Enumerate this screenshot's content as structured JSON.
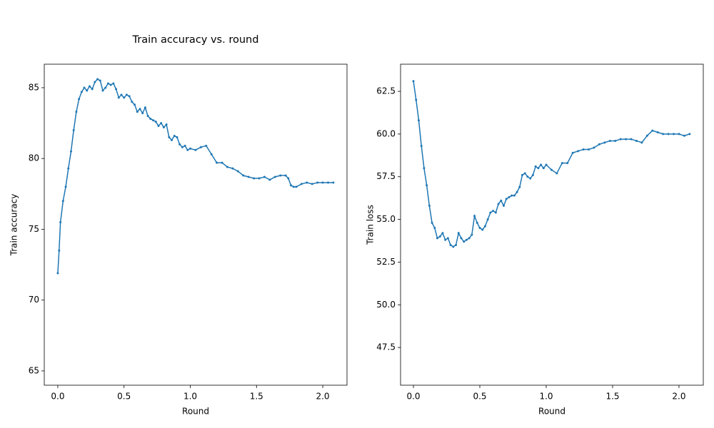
{
  "chart_data": [
    {
      "type": "line",
      "title": "Train accuracy vs. round",
      "x_label": "Round",
      "y_label": "Train accuracy",
      "x": [
        0,
        0.01,
        0.02,
        0.04,
        0.06,
        0.08,
        0.1,
        0.12,
        0.14,
        0.16,
        0.18,
        0.2,
        0.22,
        0.24,
        0.26,
        0.28,
        0.3,
        0.32,
        0.34,
        0.36,
        0.38,
        0.4,
        0.42,
        0.44,
        0.46,
        0.48,
        0.5,
        0.52,
        0.54,
        0.56,
        0.58,
        0.6,
        0.62,
        0.64,
        0.66,
        0.68,
        0.7,
        0.72,
        0.74,
        0.76,
        0.78,
        0.8,
        0.82,
        0.84,
        0.86,
        0.88,
        0.9,
        0.92,
        0.94,
        0.96,
        0.98,
        1.0,
        1.04,
        1.08,
        1.12,
        1.16,
        1.2,
        1.24,
        1.28,
        1.32,
        1.36,
        1.4,
        1.44,
        1.48,
        1.52,
        1.56,
        1.6,
        1.64,
        1.68,
        1.72,
        1.74,
        1.76,
        1.78,
        1.8,
        1.84,
        1.88,
        1.92,
        1.96,
        2.0,
        2.04,
        2.08
      ],
      "series": [
        {
          "color": "#1f77b4",
          "values": [
            71.9,
            73.5,
            75.5,
            77,
            78,
            79.3,
            80.5,
            82,
            83.3,
            84.2,
            84.7,
            85,
            84.8,
            85.1,
            84.9,
            85.4,
            85.6,
            85.5,
            84.8,
            85,
            85.3,
            85.2,
            85.3,
            84.9,
            84.3,
            84.5,
            84.3,
            84.5,
            84.4,
            84.0,
            83.8,
            83.3,
            83.5,
            83.2,
            83.6,
            83.0,
            82.8,
            82.7,
            82.6,
            82.3,
            82.5,
            82.2,
            82.4,
            81.5,
            81.3,
            81.6,
            81.5,
            81.0,
            80.8,
            80.9,
            80.6,
            80.7,
            80.6,
            80.8,
            80.9,
            80.3,
            79.7,
            79.7,
            79.4,
            79.3,
            79.1,
            78.8,
            78.7,
            78.6,
            78.6,
            78.7,
            78.5,
            78.7,
            78.8,
            78.8,
            78.6,
            78.1,
            78.0,
            78.0,
            78.2,
            78.3,
            78.2,
            78.3,
            78.3,
            78.3,
            78.3
          ]
        }
      ],
      "xlim": [
        -0.102,
        2.183
      ],
      "ylim": [
        63.99,
        86.66
      ],
      "xticks": [
        {
          "value": 0,
          "label": "0.0"
        },
        0.5,
        {
          "value": 1,
          "label": "1.0"
        },
        1.5,
        {
          "value": 2,
          "label": "2.0"
        }
      ],
      "yticks": [
        65,
        70,
        75,
        80,
        85
      ]
    },
    {
      "type": "line",
      "x_label": "Round",
      "y_label": "Train loss",
      "x": [
        0,
        0.02,
        0.04,
        0.06,
        0.08,
        0.1,
        0.12,
        0.14,
        0.16,
        0.18,
        0.2,
        0.22,
        0.24,
        0.26,
        0.28,
        0.3,
        0.32,
        0.34,
        0.36,
        0.38,
        0.4,
        0.42,
        0.44,
        0.46,
        0.48,
        0.5,
        0.52,
        0.54,
        0.56,
        0.58,
        0.6,
        0.62,
        0.64,
        0.66,
        0.68,
        0.7,
        0.72,
        0.74,
        0.76,
        0.78,
        0.8,
        0.82,
        0.84,
        0.86,
        0.88,
        0.9,
        0.92,
        0.94,
        0.96,
        0.98,
        1.0,
        1.04,
        1.08,
        1.12,
        1.16,
        1.2,
        1.24,
        1.28,
        1.32,
        1.36,
        1.4,
        1.44,
        1.48,
        1.52,
        1.56,
        1.6,
        1.64,
        1.68,
        1.72,
        1.76,
        1.8,
        1.84,
        1.88,
        1.92,
        1.96,
        2.0,
        2.04,
        2.08
      ],
      "series": [
        {
          "color": "#1f77b4",
          "values": [
            63.1,
            62.0,
            60.8,
            59.3,
            58.0,
            57.0,
            55.8,
            54.8,
            54.5,
            53.9,
            54.0,
            54.2,
            53.8,
            53.9,
            53.5,
            53.4,
            53.5,
            54.2,
            53.9,
            53.7,
            53.8,
            53.9,
            54.1,
            55.2,
            54.8,
            54.5,
            54.4,
            54.6,
            55.0,
            55.4,
            55.5,
            55.4,
            55.9,
            56.1,
            55.8,
            56.2,
            56.3,
            56.4,
            56.4,
            56.6,
            56.9,
            57.6,
            57.7,
            57.5,
            57.4,
            57.6,
            58.1,
            58.0,
            58.2,
            58.0,
            58.2,
            57.9,
            57.7,
            58.3,
            58.3,
            58.9,
            59.0,
            59.1,
            59.1,
            59.2,
            59.4,
            59.5,
            59.6,
            59.6,
            59.7,
            59.7,
            59.7,
            59.6,
            59.5,
            59.9,
            60.2,
            60.1,
            60.0,
            60.0,
            60.0,
            60.0,
            59.9,
            60.0
          ]
        }
      ],
      "xlim": [
        -0.097,
        2.183
      ],
      "ylim": [
        45.29,
        64.09
      ],
      "xticks": [
        {
          "value": 0,
          "label": "0.0"
        },
        0.5,
        {
          "value": 1,
          "label": "1.0"
        },
        1.5,
        {
          "value": 2,
          "label": "2.0"
        }
      ],
      "yticks": [
        47.5,
        {
          "value": 50,
          "label": "50.0"
        },
        52.5,
        {
          "value": 55,
          "label": "55.0"
        },
        57.5,
        {
          "value": 60,
          "label": "60.0"
        },
        62.5
      ]
    }
  ]
}
